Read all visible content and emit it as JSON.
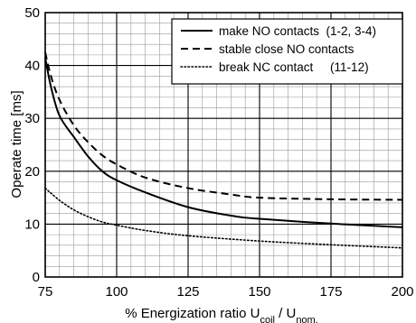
{
  "chart_data": {
    "type": "line",
    "title": "",
    "xlabel_parts": {
      "prefix": "% Energization ratio U",
      "sub1": "coil",
      "mid": " / U",
      "sub2": "nom."
    },
    "ylabel": "Operate time [ms]",
    "xlim": [
      75,
      200
    ],
    "ylim": [
      0,
      50
    ],
    "x_ticks": [
      "75",
      "100",
      "125",
      "150",
      "175",
      "200"
    ],
    "y_ticks": [
      "0",
      "10",
      "20",
      "30",
      "40",
      "50"
    ],
    "grid": "major and minor",
    "legend_position": "top-right",
    "series": [
      {
        "name": "make NO contacts  (1-2, 3-4)",
        "style": "solid",
        "x": [
          75,
          77,
          80,
          85,
          90,
          95,
          100,
          110,
          125,
          140,
          150,
          175,
          200
        ],
        "y": [
          41.5,
          36,
          30.5,
          26.5,
          22.8,
          20,
          18.3,
          16,
          13.2,
          11.6,
          11,
          10.1,
          9.4
        ]
      },
      {
        "name": "stable close NO contacts",
        "style": "dashed",
        "x": [
          75,
          77,
          80,
          85,
          90,
          95,
          100,
          110,
          125,
          140,
          150,
          175,
          200
        ],
        "y": [
          42.5,
          38,
          33.5,
          28.7,
          25.5,
          23,
          21.3,
          18.8,
          16.8,
          15.6,
          15,
          14.7,
          14.6
        ]
      },
      {
        "name": "break NC contact     (11-12)",
        "style": "dotted",
        "x": [
          75,
          80,
          85,
          90,
          95,
          100,
          110,
          125,
          150,
          175,
          200
        ],
        "y": [
          16.8,
          14.5,
          12.7,
          11.4,
          10.4,
          9.8,
          8.8,
          7.8,
          6.8,
          6.1,
          5.5
        ]
      }
    ]
  }
}
